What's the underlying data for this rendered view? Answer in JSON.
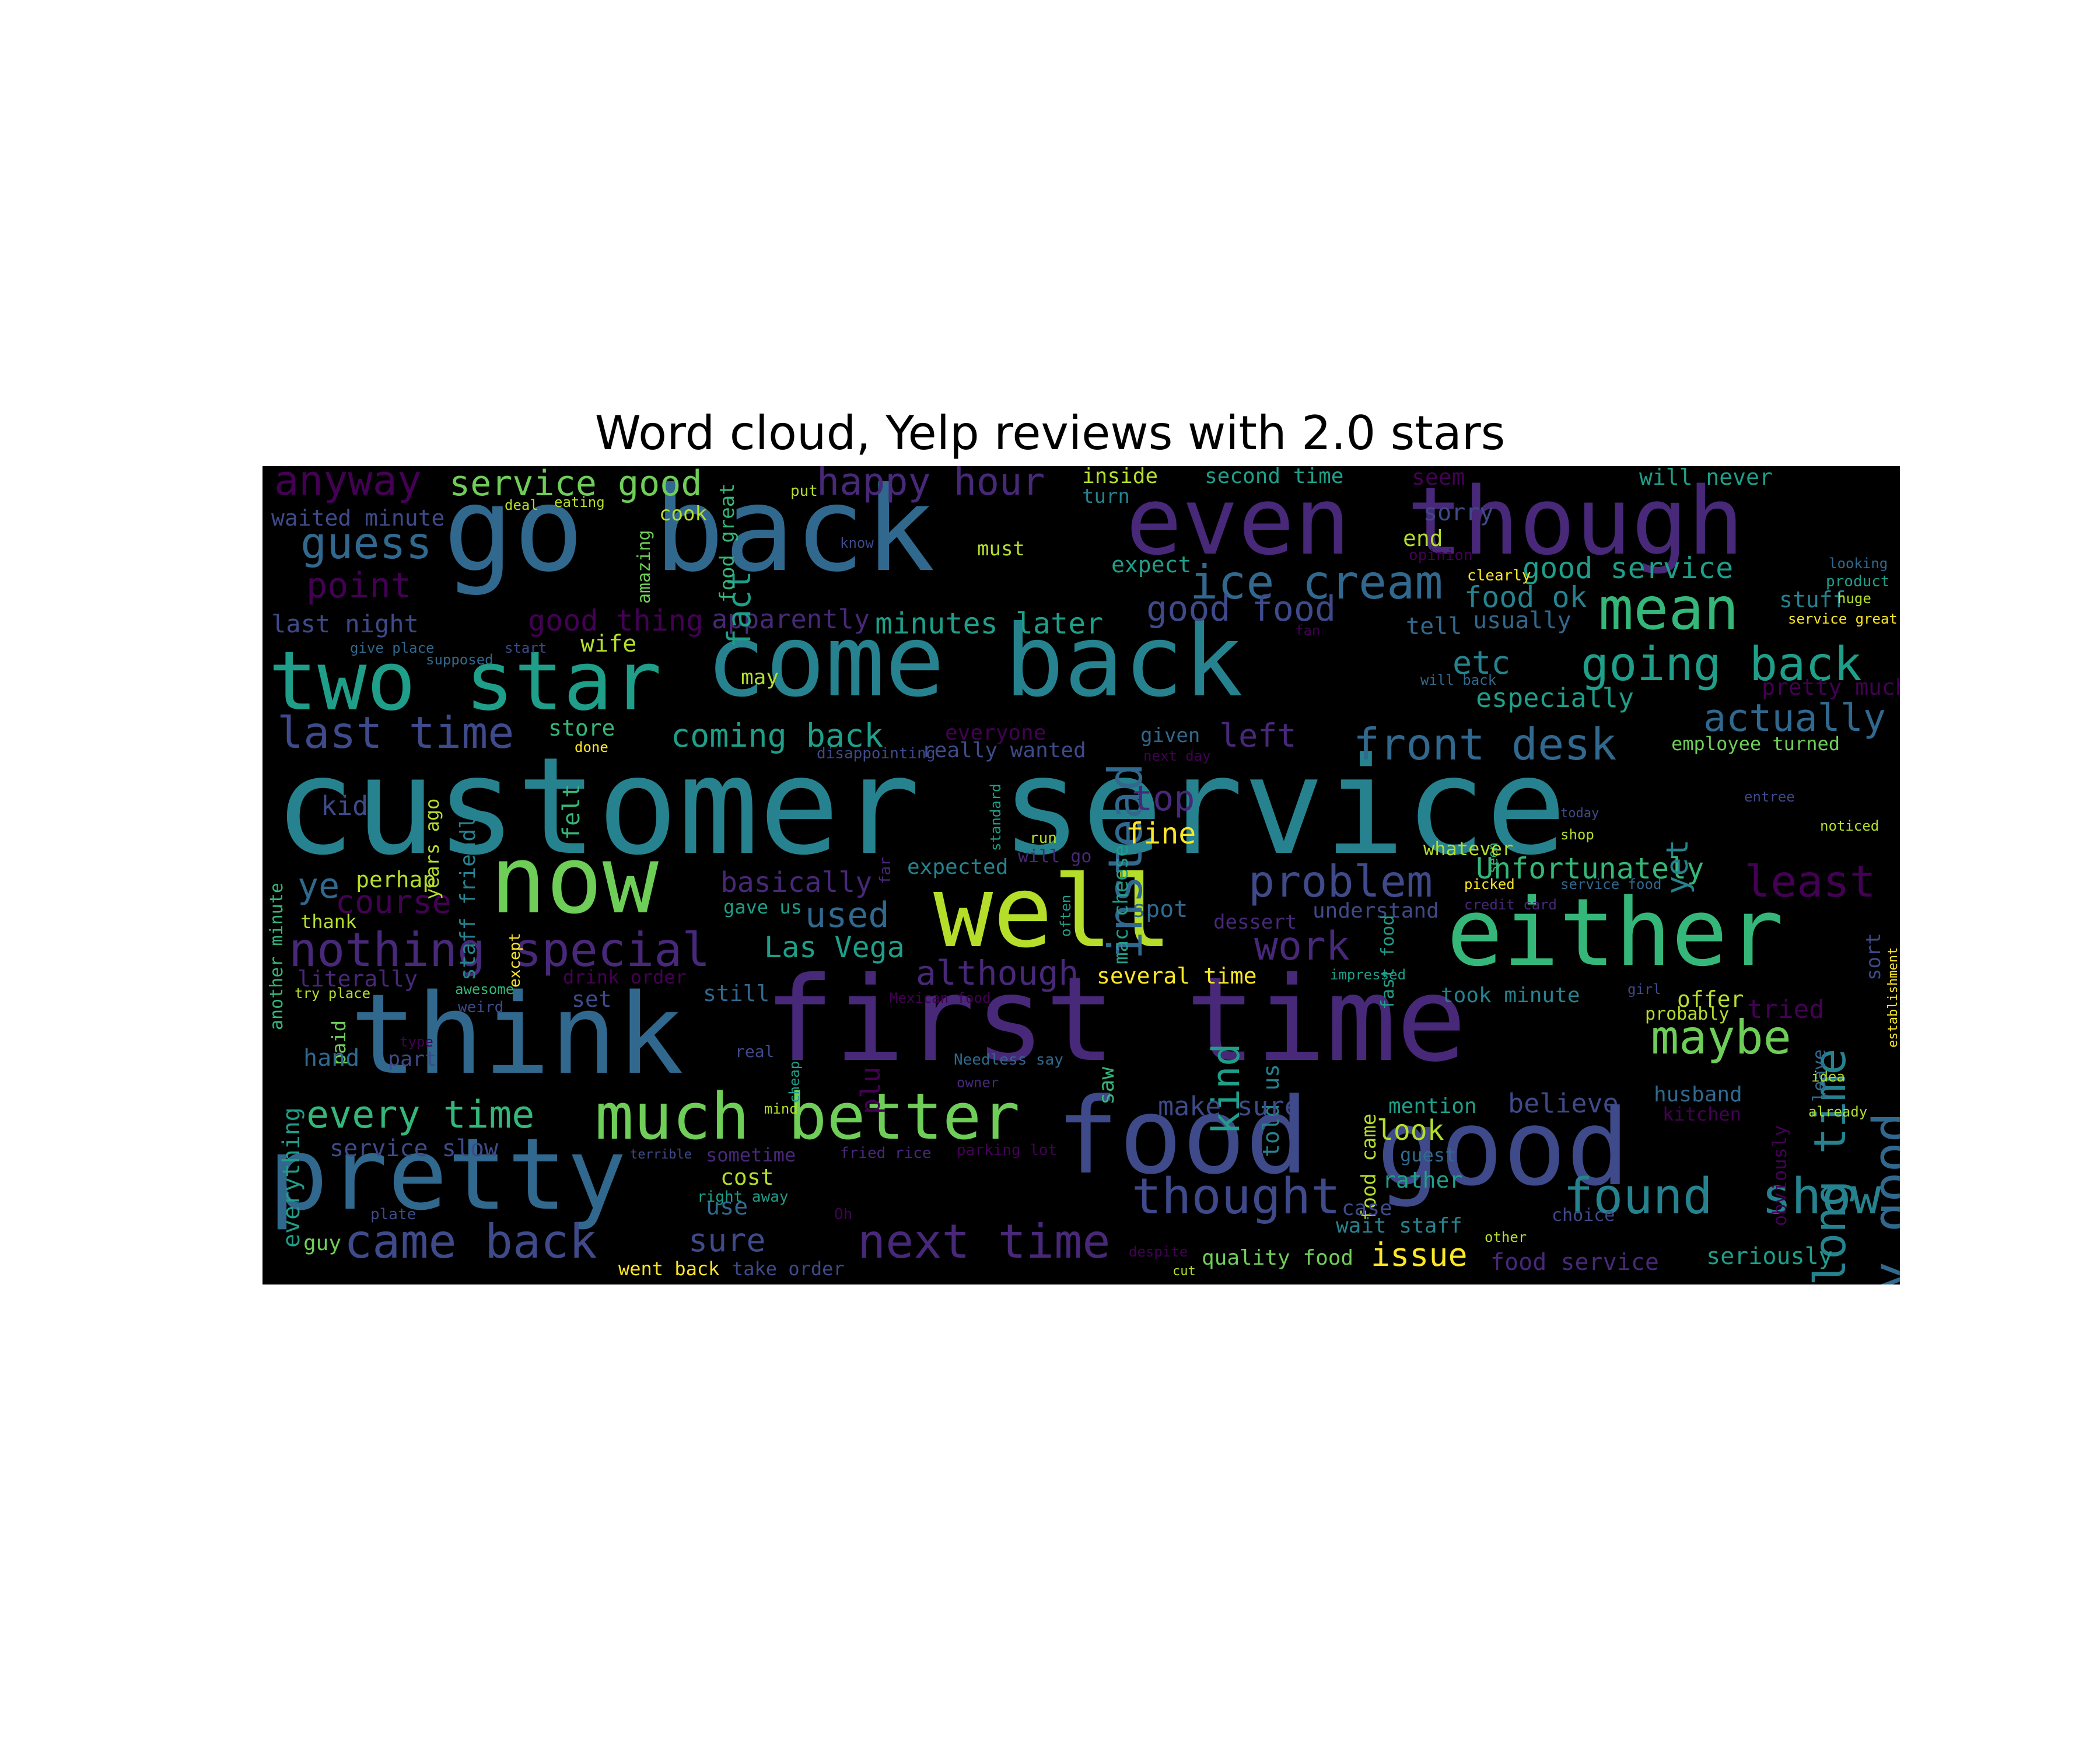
{
  "title": "Word cloud, Yelp reviews with 2.0 stars",
  "background": "#000000",
  "colormap": "viridis",
  "words": [
    "customer service",
    "first time",
    "go back",
    "come back",
    "even though",
    "food",
    "good",
    "think",
    "pretty",
    "well",
    "either",
    "now",
    "two star",
    "much better",
    "ice cream",
    "mean",
    "going back",
    "guess",
    "anyway",
    "service good",
    "happy hour",
    "last time",
    "nothing special",
    "came back",
    "next time",
    "thought",
    "found",
    "show",
    "really good",
    "long time",
    "maybe",
    "instead",
    "problem",
    "front desk",
    "actually",
    "least",
    "Unfortunately",
    "issue",
    "every time",
    "top",
    "kind",
    "point",
    "good food",
    "good service",
    "food ok",
    "etc",
    "especially",
    "coming back",
    "minutes later",
    "good thing",
    "apparently",
    "fact",
    "waited minute",
    "last night",
    "wife",
    "store",
    "ye",
    "kid",
    "perhap",
    "course",
    "thank",
    "literally",
    "set",
    "paid",
    "hand",
    "part",
    "everything",
    "service slow",
    "sometime",
    "cost",
    "use",
    "sure",
    "went back",
    "take order",
    "guy",
    "plate",
    "right away",
    "Oh",
    "fried rice",
    "parking lot",
    "mind",
    "owner",
    "Needless say",
    "real",
    "cheap",
    "plu",
    "still",
    "Las Vega",
    "used",
    "basically",
    "gave us",
    "expected",
    "although",
    "several time",
    "spot",
    "dessert",
    "work",
    "understand",
    "fine",
    "will go",
    "run",
    "mac cheese",
    "given",
    "next day",
    "left",
    "told us",
    "saw",
    "food came",
    "make sure",
    "mention",
    "believe",
    "look",
    "guest",
    "rather",
    "case",
    "wait staff",
    "quality food",
    "food service",
    "other",
    "choice",
    "husband",
    "kitchen",
    "seriously",
    "obviously",
    "tried",
    "offer",
    "probably",
    "leave",
    "took minute",
    "impressed",
    "girl",
    "picked",
    "credit card",
    "service food",
    "fast food",
    "seen",
    "whatever",
    "today",
    "shop",
    "noticed",
    "entree",
    "yet",
    "employee turned",
    "sort",
    "establishment",
    "idea",
    "already",
    "stuff",
    "pretty much",
    "service great",
    "huge",
    "product",
    "looking",
    "will never",
    "second time",
    "inside",
    "turn",
    "seem",
    "sorry",
    "end",
    "opinion",
    "expect",
    "clearly",
    "usually",
    "tell",
    "fan",
    "will back",
    "may",
    "really wanted",
    "everyone",
    "disappointing",
    "standard",
    "far",
    "often",
    "felt",
    "staff friendly",
    "years ago",
    "except",
    "another minute",
    "awesome",
    "weird",
    "try place",
    "type",
    "drink order",
    "Mexican food",
    "terrible",
    "despite",
    "cut",
    "done",
    "give place",
    "supposed",
    "start",
    "must",
    "know",
    "put",
    "cook",
    "eating",
    "deal",
    "amazing",
    "food great"
  ]
}
